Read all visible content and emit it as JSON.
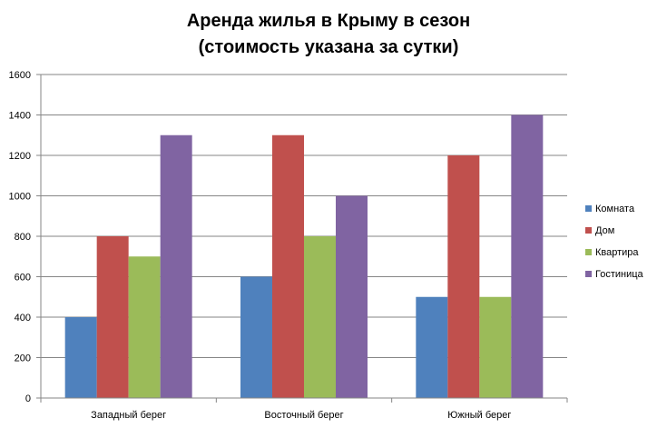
{
  "chart_data": {
    "type": "bar",
    "title_lines": [
      "Аренда жилья в Крыму в сезон",
      "(стоимость указана за сутки)"
    ],
    "categories": [
      "Западный берег",
      "Восточный берег",
      "Южный берег"
    ],
    "series": [
      {
        "name": "Комната",
        "color": "#4F81BD",
        "values": [
          400,
          600,
          500
        ]
      },
      {
        "name": "Дом",
        "color": "#C0504D",
        "values": [
          800,
          1300,
          1200
        ]
      },
      {
        "name": "Квартира",
        "color": "#9BBB59",
        "values": [
          700,
          800,
          500
        ]
      },
      {
        "name": "Гостиница",
        "color": "#8064A2",
        "values": [
          1300,
          1000,
          1400
        ]
      }
    ],
    "ylim": [
      0,
      1600
    ],
    "yticks": [
      0,
      200,
      400,
      600,
      800,
      1000,
      1200,
      1400,
      1600
    ],
    "grid": true,
    "legend_position": "right",
    "xlabel": "",
    "ylabel": ""
  }
}
